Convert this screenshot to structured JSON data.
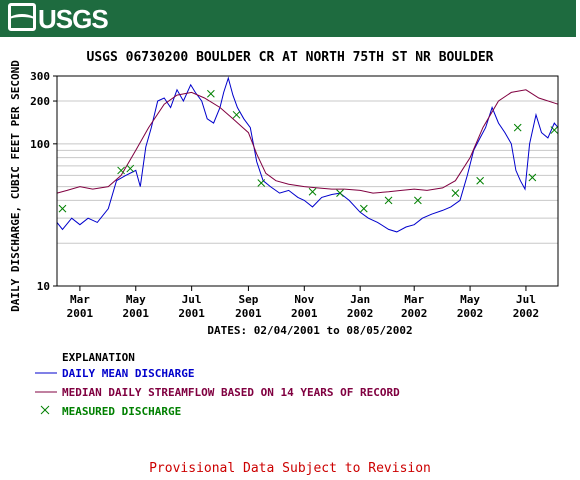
{
  "banner": {
    "logo_text": "USGS",
    "color": "#1e6b3f"
  },
  "chart_data": {
    "type": "line",
    "title": "USGS 06730200 BOULDER CR AT NORTH 75TH ST NR BOULDER",
    "ylabel": "DAILY DISCHARGE, CUBIC FEET PER SECOND",
    "xlabel": "DATES: 02/04/2001 to 08/05/2002",
    "y_scale": "log",
    "ylim": [
      10,
      300
    ],
    "xlim": [
      "2001-02-04",
      "2002-08-05"
    ],
    "y_ticks": [
      {
        "value": 10,
        "label": "10"
      },
      {
        "value": 100,
        "label": "100"
      },
      {
        "value": 200,
        "label": "200"
      },
      {
        "value": 300,
        "label": "300"
      }
    ],
    "x_ticks": [
      {
        "date": "2001-03-01",
        "label": [
          "Mar",
          "2001"
        ]
      },
      {
        "date": "2001-05-01",
        "label": [
          "May",
          "2001"
        ]
      },
      {
        "date": "2001-07-01",
        "label": [
          "Jul",
          "2001"
        ]
      },
      {
        "date": "2001-09-01",
        "label": [
          "Sep",
          "2001"
        ]
      },
      {
        "date": "2001-11-01",
        "label": [
          "Nov",
          "2001"
        ]
      },
      {
        "date": "2002-01-01",
        "label": [
          "Jan",
          "2002"
        ]
      },
      {
        "date": "2002-03-01",
        "label": [
          "Mar",
          "2002"
        ]
      },
      {
        "date": "2002-05-01",
        "label": [
          "May",
          "2002"
        ]
      },
      {
        "date": "2002-07-01",
        "label": [
          "Jul",
          "2002"
        ]
      }
    ],
    "grid": true,
    "series": [
      {
        "key": "daily_mean",
        "color": "#0000cc",
        "points": [
          [
            "2001-02-04",
            28
          ],
          [
            "2001-02-10",
            25
          ],
          [
            "2001-02-20",
            30
          ],
          [
            "2001-03-01",
            27
          ],
          [
            "2001-03-10",
            30
          ],
          [
            "2001-03-20",
            28
          ],
          [
            "2001-04-01",
            35
          ],
          [
            "2001-04-10",
            55
          ],
          [
            "2001-04-20",
            60
          ],
          [
            "2001-05-01",
            65
          ],
          [
            "2001-05-06",
            50
          ],
          [
            "2001-05-12",
            95
          ],
          [
            "2001-05-18",
            130
          ],
          [
            "2001-05-25",
            200
          ],
          [
            "2001-06-01",
            210
          ],
          [
            "2001-06-08",
            180
          ],
          [
            "2001-06-15",
            240
          ],
          [
            "2001-06-22",
            200
          ],
          [
            "2001-06-30",
            260
          ],
          [
            "2001-07-05",
            230
          ],
          [
            "2001-07-12",
            200
          ],
          [
            "2001-07-18",
            150
          ],
          [
            "2001-07-25",
            140
          ],
          [
            "2001-08-01",
            180
          ],
          [
            "2001-08-05",
            230
          ],
          [
            "2001-08-10",
            290
          ],
          [
            "2001-08-15",
            220
          ],
          [
            "2001-08-20",
            180
          ],
          [
            "2001-08-27",
            150
          ],
          [
            "2001-09-03",
            130
          ],
          [
            "2001-09-10",
            75
          ],
          [
            "2001-09-17",
            55
          ],
          [
            "2001-09-25",
            50
          ],
          [
            "2001-10-05",
            45
          ],
          [
            "2001-10-15",
            47
          ],
          [
            "2001-10-25",
            42
          ],
          [
            "2001-11-01",
            40
          ],
          [
            "2001-11-10",
            36
          ],
          [
            "2001-11-20",
            42
          ],
          [
            "2001-12-01",
            44
          ],
          [
            "2001-12-10",
            45
          ],
          [
            "2001-12-20",
            40
          ],
          [
            "2002-01-01",
            33
          ],
          [
            "2002-01-10",
            30
          ],
          [
            "2002-01-20",
            28
          ],
          [
            "2002-02-01",
            25
          ],
          [
            "2002-02-10",
            24
          ],
          [
            "2002-02-20",
            26
          ],
          [
            "2002-03-01",
            27
          ],
          [
            "2002-03-10",
            30
          ],
          [
            "2002-03-20",
            32
          ],
          [
            "2002-04-01",
            34
          ],
          [
            "2002-04-10",
            36
          ],
          [
            "2002-04-20",
            40
          ],
          [
            "2002-04-28",
            60
          ],
          [
            "2002-05-05",
            90
          ],
          [
            "2002-05-12",
            110
          ],
          [
            "2002-05-18",
            130
          ],
          [
            "2002-05-25",
            180
          ],
          [
            "2002-06-01",
            140
          ],
          [
            "2002-06-08",
            120
          ],
          [
            "2002-06-15",
            100
          ],
          [
            "2002-06-20",
            65
          ],
          [
            "2002-06-25",
            55
          ],
          [
            "2002-06-30",
            48
          ],
          [
            "2002-07-05",
            100
          ],
          [
            "2002-07-12",
            160
          ],
          [
            "2002-07-18",
            120
          ],
          [
            "2002-07-25",
            110
          ],
          [
            "2002-08-01",
            140
          ],
          [
            "2002-08-05",
            130
          ]
        ]
      },
      {
        "key": "median",
        "color": "#800040",
        "points": [
          [
            "2001-02-04",
            45
          ],
          [
            "2001-02-15",
            47
          ],
          [
            "2001-03-01",
            50
          ],
          [
            "2001-03-15",
            48
          ],
          [
            "2001-04-01",
            50
          ],
          [
            "2001-04-15",
            60
          ],
          [
            "2001-05-01",
            90
          ],
          [
            "2001-05-15",
            130
          ],
          [
            "2001-06-01",
            190
          ],
          [
            "2001-06-15",
            220
          ],
          [
            "2001-07-01",
            230
          ],
          [
            "2001-07-15",
            210
          ],
          [
            "2001-08-01",
            180
          ],
          [
            "2001-08-15",
            150
          ],
          [
            "2001-09-01",
            120
          ],
          [
            "2001-09-10",
            85
          ],
          [
            "2001-09-20",
            62
          ],
          [
            "2001-10-01",
            55
          ],
          [
            "2001-10-15",
            52
          ],
          [
            "2001-11-01",
            50
          ],
          [
            "2001-11-15",
            49
          ],
          [
            "2001-12-01",
            48
          ],
          [
            "2001-12-15",
            48
          ],
          [
            "2002-01-01",
            47
          ],
          [
            "2002-01-15",
            45
          ],
          [
            "2002-02-01",
            46
          ],
          [
            "2002-02-15",
            47
          ],
          [
            "2002-03-01",
            48
          ],
          [
            "2002-03-15",
            47
          ],
          [
            "2002-04-01",
            49
          ],
          [
            "2002-04-15",
            55
          ],
          [
            "2002-05-01",
            80
          ],
          [
            "2002-05-15",
            130
          ],
          [
            "2002-06-01",
            200
          ],
          [
            "2002-06-15",
            230
          ],
          [
            "2002-07-01",
            240
          ],
          [
            "2002-07-15",
            210
          ],
          [
            "2002-08-05",
            190
          ]
        ]
      },
      {
        "key": "measured",
        "color": "#008000",
        "marker": "x",
        "points": [
          [
            "2001-02-10",
            35
          ],
          [
            "2001-04-15",
            65
          ],
          [
            "2001-04-25",
            67
          ],
          [
            "2001-07-22",
            225
          ],
          [
            "2001-08-19",
            160
          ],
          [
            "2001-09-15",
            53
          ],
          [
            "2001-11-10",
            46
          ],
          [
            "2001-12-10",
            45
          ],
          [
            "2002-01-05",
            35
          ],
          [
            "2002-02-01",
            40
          ],
          [
            "2002-03-05",
            40
          ],
          [
            "2002-04-15",
            45
          ],
          [
            "2002-05-12",
            55
          ],
          [
            "2002-06-22",
            130
          ],
          [
            "2002-07-08",
            58
          ],
          [
            "2002-08-01",
            125
          ]
        ]
      }
    ]
  },
  "explanation": {
    "title": "EXPLANATION",
    "items": [
      {
        "label": "DAILY MEAN DISCHARGE",
        "color": "#0000cc",
        "symbol": "line"
      },
      {
        "label": "MEDIAN DAILY STREAMFLOW BASED ON 14 YEARS OF RECORD",
        "color": "#800040",
        "symbol": "line"
      },
      {
        "label": "MEASURED DISCHARGE",
        "color": "#008000",
        "symbol": "x"
      }
    ]
  },
  "footer": {
    "text": "Provisional Data Subject to Revision",
    "color": "#cc0000"
  }
}
